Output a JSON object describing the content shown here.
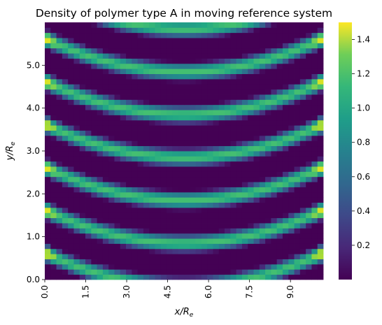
{
  "chart_data": {
    "type": "heatmap",
    "title": "Density of polymer type A in moving reference system",
    "xlabel": "x/Re",
    "ylabel": "y/Re",
    "x_range": [
      0,
      10.2
    ],
    "y_range": [
      0,
      6.0
    ],
    "x_ticks": [
      "0.0",
      "1.5",
      "3.0",
      "4.5",
      "6.0",
      "7.5",
      "9.0"
    ],
    "y_ticks": [
      "0.0",
      "1.0",
      "2.0",
      "3.0",
      "4.0",
      "5.0"
    ],
    "colorbar": {
      "min": 0.0,
      "max": 1.5,
      "ticks": [
        "0.2",
        "0.4",
        "0.6",
        "0.8",
        "1.0",
        "1.2",
        "1.4"
      ],
      "colormap": "viridis"
    },
    "grid": false,
    "pattern": {
      "stripe_period_y": 1.0,
      "curvature_center_x": 5.1,
      "edge_peak_value": 1.5,
      "band_peak_value": 1.05,
      "trough_value": 0.0
    }
  }
}
